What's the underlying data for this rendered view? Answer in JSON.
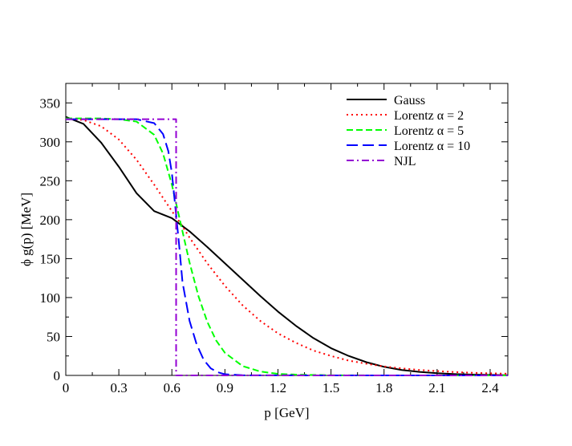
{
  "chart_data": {
    "type": "line",
    "title": "",
    "xlabel": "p [GeV]",
    "ylabel": "ϕ g(p) [MeV]",
    "xlim": [
      0,
      2.5
    ],
    "ylim": [
      0,
      375
    ],
    "xticks": [
      0,
      0.3,
      0.6,
      0.9,
      1.2,
      1.5,
      1.8,
      2.1,
      2.4
    ],
    "xtick_labels": [
      "0",
      "0.3",
      "0.6",
      "0.9",
      "1.2",
      "1.5",
      "1.8",
      "2.1",
      "2.4"
    ],
    "yticks": [
      0,
      50,
      100,
      150,
      200,
      250,
      300,
      350
    ],
    "ytick_labels": [
      "0",
      "50",
      "100",
      "150",
      "200",
      "250",
      "300",
      "350"
    ],
    "grid": false,
    "legend_position": "top-right",
    "series": [
      {
        "name": "Gauss",
        "color": "#000000",
        "style": "solid",
        "x": [
          0,
          0.1,
          0.2,
          0.3,
          0.4,
          0.5,
          0.6,
          0.7,
          0.8,
          0.9,
          1.0,
          1.1,
          1.2,
          1.3,
          1.4,
          1.5,
          1.6,
          1.7,
          1.8,
          1.9,
          2.0,
          2.1,
          2.2,
          2.3,
          2.4,
          2.5
        ],
        "y": [
          332,
          323,
          299,
          268,
          234,
          211,
          202,
          185,
          165,
          144,
          123,
          102,
          82,
          64,
          48,
          35,
          25,
          17,
          11,
          7,
          4.5,
          2.8,
          1.7,
          1.0,
          0.6,
          0.3
        ]
      },
      {
        "name": "Lorentz α = 2",
        "color": "#ff0000",
        "style": "dotted",
        "x": [
          0,
          0.1,
          0.2,
          0.3,
          0.4,
          0.5,
          0.6,
          0.65,
          0.7,
          0.8,
          0.9,
          1.0,
          1.1,
          1.2,
          1.3,
          1.4,
          1.5,
          1.6,
          1.7,
          1.8,
          1.9,
          2.0,
          2.1,
          2.2,
          2.3,
          2.4,
          2.5
        ],
        "y": [
          330,
          328,
          320,
          303,
          277,
          245,
          211,
          195,
          177,
          144,
          115,
          90,
          70,
          54,
          42,
          32,
          25,
          19,
          15,
          11.5,
          9,
          7,
          5.5,
          4.3,
          3.4,
          2.7,
          2.2
        ]
      },
      {
        "name": "Lorentz α = 5",
        "color": "#00ff00",
        "style": "dashed",
        "x": [
          0,
          0.2,
          0.3,
          0.4,
          0.5,
          0.55,
          0.6,
          0.65,
          0.7,
          0.75,
          0.8,
          0.85,
          0.9,
          1.0,
          1.1,
          1.2,
          1.3,
          1.5,
          1.8,
          2.1,
          2.5
        ],
        "y": [
          330,
          330,
          329,
          326,
          309,
          285,
          245,
          195,
          145,
          102,
          69,
          45,
          29,
          12,
          5,
          2,
          1,
          0.2,
          0,
          0,
          0
        ]
      },
      {
        "name": "Lorentz α = 10",
        "color": "#0000ff",
        "style": "longdash",
        "x": [
          0,
          0.4,
          0.5,
          0.55,
          0.58,
          0.6,
          0.62,
          0.64,
          0.66,
          0.7,
          0.74,
          0.78,
          0.82,
          0.86,
          0.9,
          1.0,
          1.5,
          2.5
        ],
        "y": [
          329,
          329,
          324,
          310,
          288,
          260,
          215,
          170,
          120,
          70,
          40,
          20,
          9,
          4,
          1.5,
          0.2,
          0,
          0
        ]
      },
      {
        "name": "NJL",
        "color": "#9400d3",
        "style": "dashdot",
        "x": [
          0,
          0.61,
          0.624,
          0.624,
          2.5
        ],
        "y": [
          329,
          329,
          329,
          0,
          0
        ]
      }
    ]
  }
}
